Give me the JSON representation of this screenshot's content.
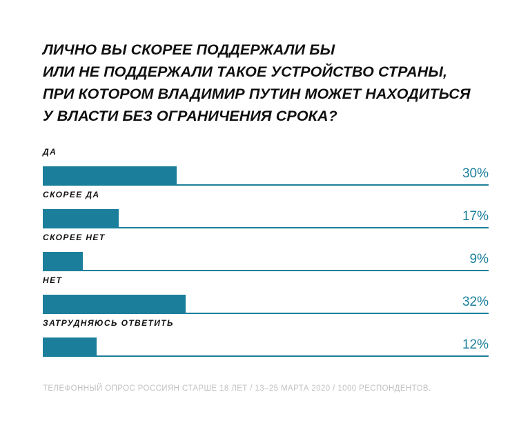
{
  "title_lines": [
    "ЛИЧНО ВЫ СКОРЕЕ ПОДДЕРЖАЛИ БЫ",
    "ИЛИ НЕ ПОДДЕРЖАЛИ ТАКОЕ УСТРОЙСТВО СТРАНЫ,",
    "ПРИ КОТОРОМ ВЛАДИМИР ПУТИН МОЖЕТ НАХОДИТЬСЯ",
    "У ВЛАСТИ БЕЗ ОГРАНИЧЕНИЯ СРОКА?"
  ],
  "footnote": "ТЕЛЕФОННЫЙ ОПРОС РОССИЯН СТАРШЕ 18 ЛЕТ / 13–25 МАРТА 2020 / 1000 РЕСПОНДЕНТОВ.",
  "colors": {
    "bar": "#1b7f9c",
    "text": "#111111",
    "footnote": "#c2c2c2"
  },
  "chart_data": {
    "type": "bar",
    "orientation": "horizontal",
    "title": "ЛИЧНО ВЫ СКОРЕЕ ПОДДЕРЖАЛИ БЫ ИЛИ НЕ ПОДДЕРЖАЛИ ТАКОЕ УСТРОЙСТВО СТРАНЫ, ПРИ КОТОРОМ ВЛАДИМИР ПУТИН МОЖЕТ НАХОДИТЬСЯ У ВЛАСТИ БЕЗ ОГРАНИЧЕНИЯ СРОКА?",
    "categories": [
      "ДА",
      "СКОРЕЕ ДА",
      "СКОРЕЕ НЕТ",
      "НЕТ",
      "ЗАТРУДНЯЮСЬ ОТВЕТИТЬ"
    ],
    "values": [
      30,
      17,
      9,
      32,
      12
    ],
    "value_labels": [
      "30%",
      "17%",
      "9%",
      "32%",
      "12%"
    ],
    "xlim": [
      0,
      100
    ],
    "grid": false,
    "legend": "none"
  }
}
